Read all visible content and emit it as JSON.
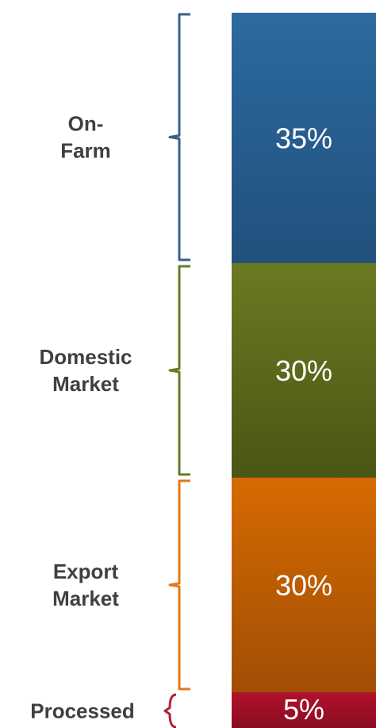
{
  "chart_data": {
    "type": "bar",
    "stacked": true,
    "categories": [
      "On-Farm",
      "Domestic Market",
      "Export Market",
      "Processed"
    ],
    "values": [
      35,
      30,
      30,
      5
    ],
    "value_labels": [
      "35%",
      "30%",
      "30%",
      "5%"
    ],
    "category_label_lines": [
      [
        "On-",
        "Farm"
      ],
      [
        "Domestic",
        "Market"
      ],
      [
        "Export",
        "Market"
      ],
      [
        "Processed"
      ]
    ],
    "colors": [
      {
        "top": "#2c6aa0",
        "bottom": "#22507c",
        "brace": "#3a5f8a"
      },
      {
        "top": "#6a7a22",
        "bottom": "#4a5614",
        "brace": "#6a7a2a"
      },
      {
        "top": "#d66a02",
        "bottom": "#a04e04",
        "brace": "#e07a1a"
      },
      {
        "top": "#b0122a",
        "bottom": "#8a0c22",
        "brace": "#b0203a"
      }
    ],
    "total": 100
  }
}
